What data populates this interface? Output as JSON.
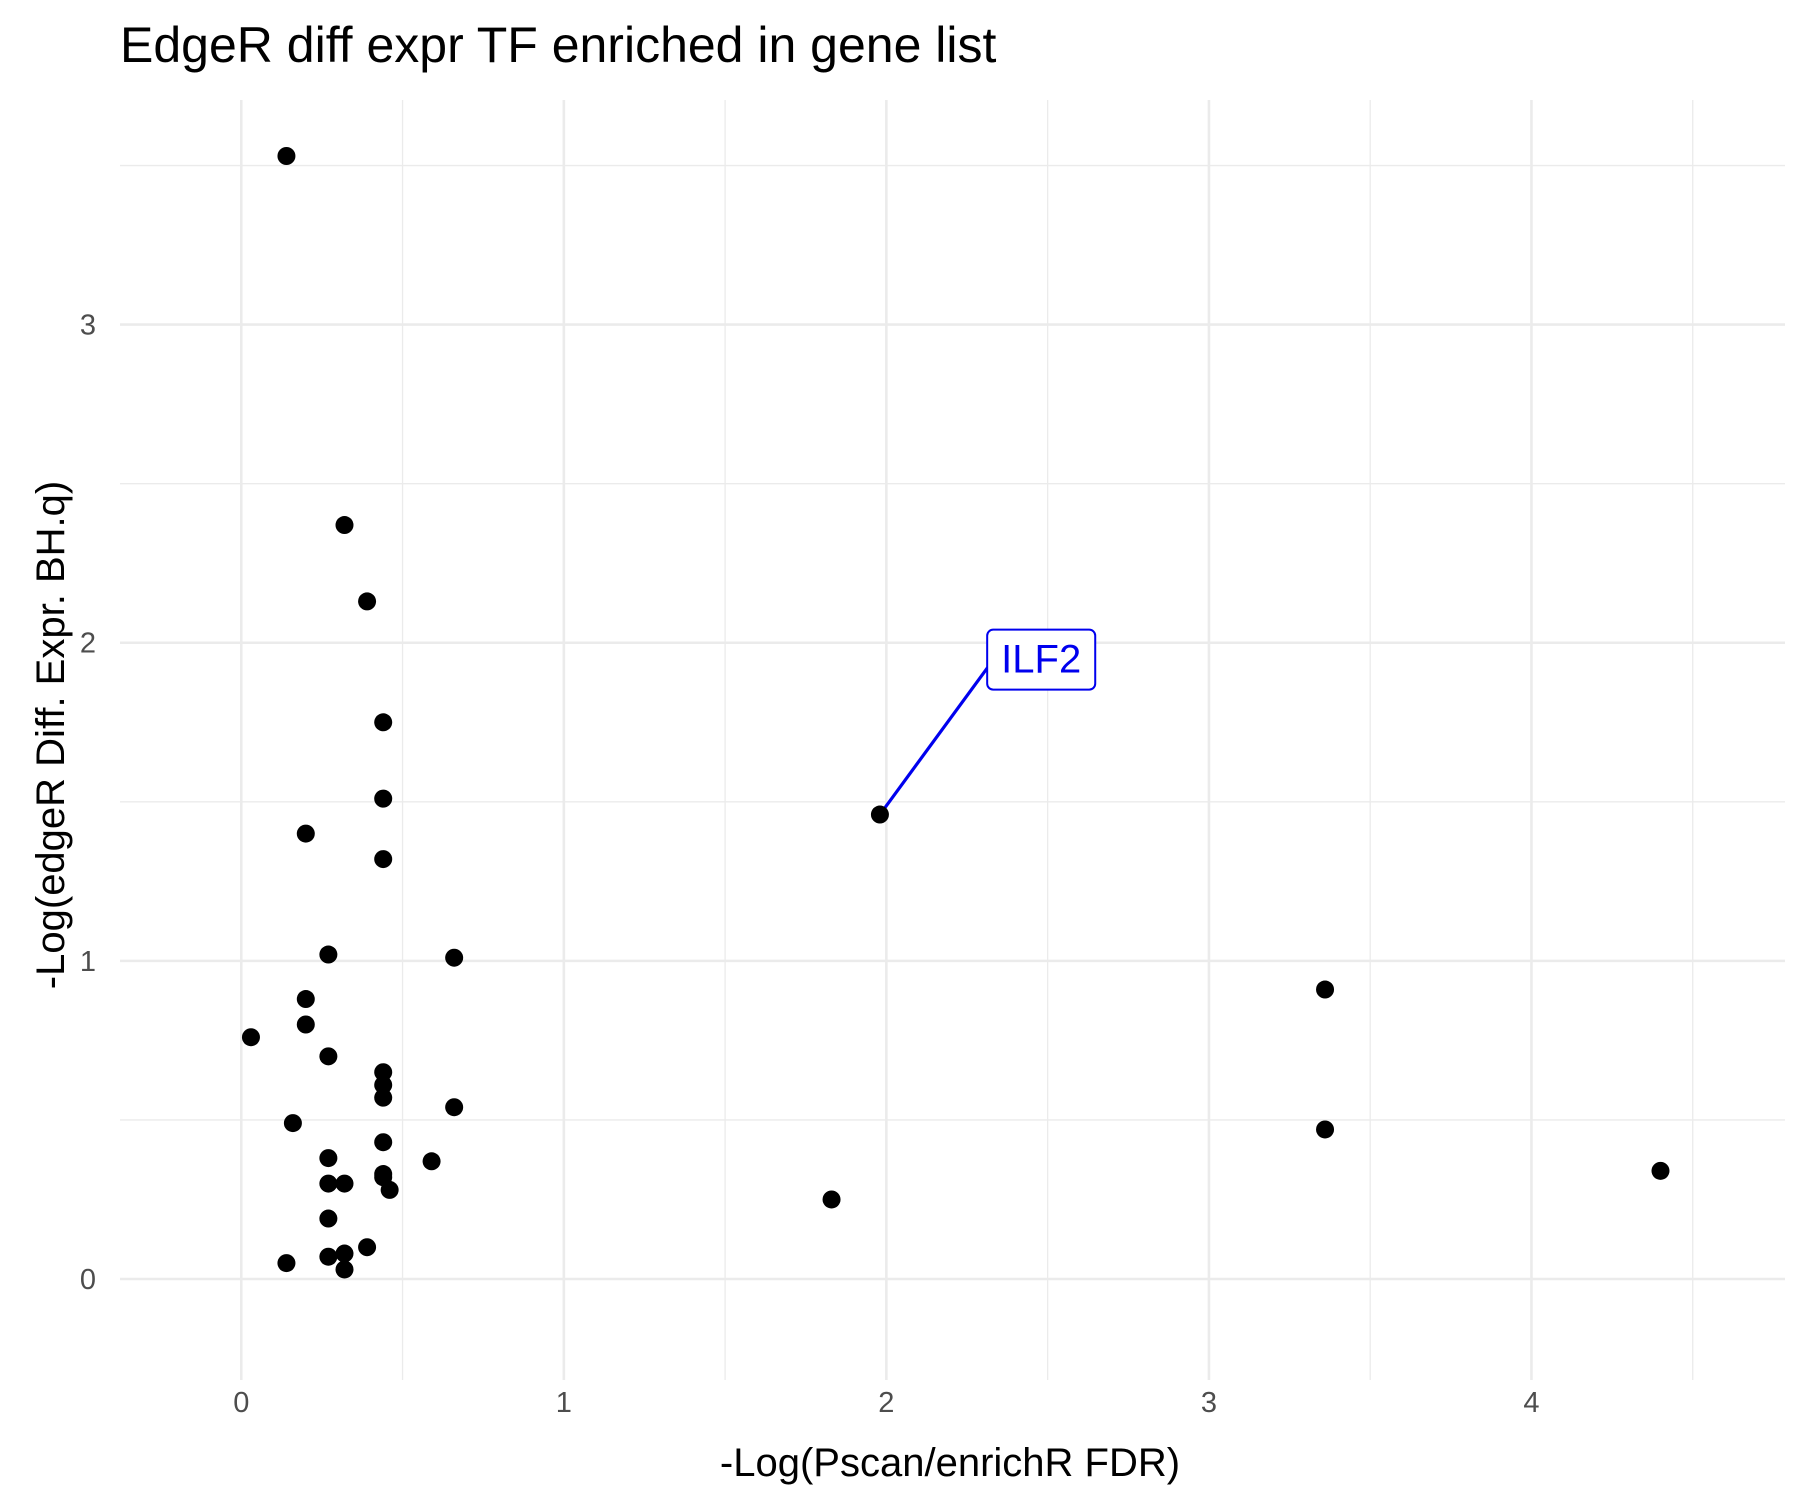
{
  "chart_data": {
    "type": "scatter",
    "title": "EdgeR diff expr TF enriched in gene list",
    "xlabel": "-Log(Pscan/enrichR FDR)",
    "ylabel": "-Log(edgeR Diff. Expr. BH.q)",
    "xlim": [
      -0.19,
      4.6
    ],
    "ylim": [
      -0.11,
      3.53
    ],
    "x_ticks": [
      0,
      1,
      2,
      3,
      4
    ],
    "y_ticks": [
      0,
      1,
      2,
      3
    ],
    "x_tick_labels": [
      "0",
      "1",
      "2",
      "3",
      "4"
    ],
    "y_tick_labels": [
      "0",
      "1",
      "2",
      "3"
    ],
    "grid": true,
    "legend": "none",
    "label_color": "#0000ee",
    "points": [
      {
        "x": 0.14,
        "y": 3.53
      },
      {
        "x": 0.32,
        "y": 2.37
      },
      {
        "x": 0.39,
        "y": 2.13
      },
      {
        "x": 0.44,
        "y": 1.75
      },
      {
        "x": 0.44,
        "y": 1.51
      },
      {
        "x": 0.2,
        "y": 1.4
      },
      {
        "x": 0.44,
        "y": 1.32
      },
      {
        "x": 0.27,
        "y": 1.02
      },
      {
        "x": 0.66,
        "y": 1.01
      },
      {
        "x": 0.2,
        "y": 0.88
      },
      {
        "x": 0.2,
        "y": 0.8
      },
      {
        "x": 0.03,
        "y": 0.76
      },
      {
        "x": 0.27,
        "y": 0.7
      },
      {
        "x": 0.44,
        "y": 0.65
      },
      {
        "x": 0.44,
        "y": 0.61
      },
      {
        "x": 0.44,
        "y": 0.57
      },
      {
        "x": 0.66,
        "y": 0.54
      },
      {
        "x": 0.16,
        "y": 0.49
      },
      {
        "x": 0.44,
        "y": 0.43
      },
      {
        "x": 0.27,
        "y": 0.38
      },
      {
        "x": 0.59,
        "y": 0.37
      },
      {
        "x": 0.44,
        "y": 0.33
      },
      {
        "x": 0.44,
        "y": 0.32
      },
      {
        "x": 0.27,
        "y": 0.3
      },
      {
        "x": 0.32,
        "y": 0.3
      },
      {
        "x": 0.46,
        "y": 0.28
      },
      {
        "x": 0.27,
        "y": 0.19
      },
      {
        "x": 0.39,
        "y": 0.1
      },
      {
        "x": 0.32,
        "y": 0.08
      },
      {
        "x": 0.27,
        "y": 0.07
      },
      {
        "x": 0.14,
        "y": 0.05
      },
      {
        "x": 0.32,
        "y": 0.03
      },
      {
        "x": 1.83,
        "y": 0.25
      },
      {
        "x": 1.98,
        "y": 1.46,
        "label": "ILF2",
        "label_x": 2.48,
        "label_y": 1.95
      },
      {
        "x": 3.36,
        "y": 0.91
      },
      {
        "x": 3.36,
        "y": 0.47
      },
      {
        "x": 4.4,
        "y": 0.34
      }
    ]
  }
}
